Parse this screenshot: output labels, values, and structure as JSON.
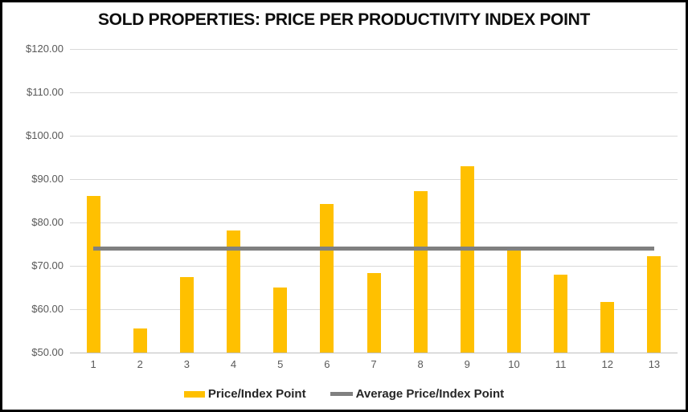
{
  "chart_data": {
    "type": "bar",
    "title": "SOLD PROPERTIES: PRICE PER PRODUCTIVITY INDEX POINT",
    "categories": [
      "1",
      "2",
      "3",
      "4",
      "5",
      "6",
      "7",
      "8",
      "9",
      "10",
      "11",
      "12",
      "13"
    ],
    "series": [
      {
        "name": "Price/Index Point",
        "type": "bar",
        "color": "#FFC000",
        "values": [
          86.1,
          55.6,
          67.5,
          78.1,
          65.0,
          84.3,
          68.4,
          87.2,
          92.9,
          73.8,
          67.9,
          61.7,
          72.3
        ]
      },
      {
        "name": "Average Price/Index Point",
        "type": "line",
        "color": "#808080",
        "value": 73.9
      }
    ],
    "ylim": [
      50,
      120
    ],
    "ytick_step": 10,
    "yticks": [
      120,
      110,
      100,
      90,
      80,
      70,
      60,
      50
    ],
    "ytick_labels": [
      "$120.00",
      "$110.00",
      "$100.00",
      "$90.00",
      "$80.00",
      "$70.00",
      "$60.00",
      "$50.00"
    ],
    "grid": true,
    "gridline_color": "#D9D9D9",
    "axis_line_color": "#BFBFBF",
    "tick_label_color": "#595959",
    "legend_position": "bottom"
  }
}
